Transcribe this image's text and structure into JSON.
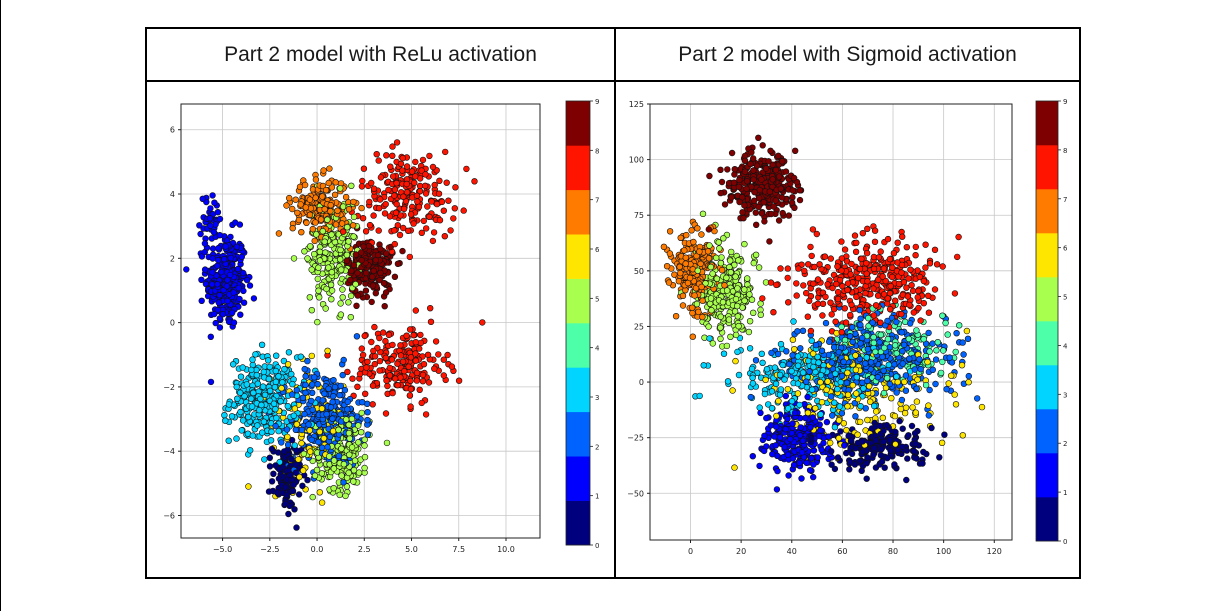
{
  "panels": {
    "left_title": "Part 2 model with ReLu activation",
    "right_title": "Part 2 model with Sigmoid activation"
  },
  "colormap": {
    "name": "jet",
    "colors": [
      "#00007f",
      "#0000ff",
      "#0063ff",
      "#00d4ff",
      "#4effa9",
      "#a9ff4e",
      "#ffe600",
      "#ff7b00",
      "#ff1400",
      "#7f0000"
    ]
  },
  "chart_data": [
    {
      "type": "scatter",
      "title": "",
      "xlabel": "",
      "ylabel": "",
      "xlim": [
        -7.2,
        11.8
      ],
      "ylim": [
        -6.7,
        6.8
      ],
      "xticks": [
        -5.0,
        -2.5,
        0.0,
        2.5,
        5.0,
        7.5,
        10.0
      ],
      "xtick_labels": [
        "−5.0",
        "−2.5",
        "0.0",
        "2.5",
        "5.0",
        "7.5",
        "10.0"
      ],
      "yticks": [
        -6,
        -4,
        -2,
        0,
        2,
        4,
        6
      ],
      "ytick_labels": [
        "−6",
        "−4",
        "−2",
        "0",
        "2",
        "4",
        "6"
      ],
      "grid": true,
      "colorbar": {
        "min": 0,
        "max": 9,
        "ticks": [
          0,
          1,
          2,
          3,
          4,
          5,
          6,
          7,
          8,
          9
        ],
        "tick_labels": [
          "0",
          "1",
          "2",
          "3",
          "4",
          "5",
          "6",
          "7",
          "8",
          "9"
        ]
      },
      "clusters": [
        {
          "label": 1,
          "center": [
            -4.8,
            1.3
          ],
          "spread": [
            0.7,
            1.0
          ],
          "n": 300
        },
        {
          "label": 1,
          "center": [
            -5.6,
            3.2
          ],
          "spread": [
            0.4,
            0.5
          ],
          "n": 40
        },
        {
          "label": 3,
          "center": [
            -2.8,
            -2.4
          ],
          "spread": [
            1.2,
            0.9
          ],
          "n": 280
        },
        {
          "label": 0,
          "center": [
            -1.6,
            -4.8
          ],
          "spread": [
            0.5,
            0.7
          ],
          "n": 110
        },
        {
          "label": 2,
          "center": [
            0.5,
            -3.0
          ],
          "spread": [
            1.3,
            1.0
          ],
          "n": 300
        },
        {
          "label": 5,
          "center": [
            1.3,
            -4.0
          ],
          "spread": [
            1.0,
            0.8
          ],
          "n": 220
        },
        {
          "label": 6,
          "center": [
            -0.5,
            -3.2
          ],
          "spread": [
            1.3,
            1.2
          ],
          "n": 90
        },
        {
          "label": 7,
          "center": [
            0.2,
            3.6
          ],
          "spread": [
            1.0,
            0.6
          ],
          "n": 200
        },
        {
          "label": 5,
          "center": [
            0.8,
            2.2
          ],
          "spread": [
            0.9,
            1.1
          ],
          "n": 220
        },
        {
          "label": 9,
          "center": [
            2.8,
            1.7
          ],
          "spread": [
            0.8,
            0.6
          ],
          "n": 200
        },
        {
          "label": 8,
          "center": [
            4.8,
            4.0
          ],
          "spread": [
            1.7,
            0.9
          ],
          "n": 210
        },
        {
          "label": 8,
          "center": [
            4.4,
            -1.3
          ],
          "spread": [
            1.6,
            0.8
          ],
          "n": 200
        }
      ]
    },
    {
      "type": "scatter",
      "title": "",
      "xlabel": "",
      "ylabel": "",
      "xlim": [
        -16,
        127
      ],
      "ylim": [
        -71,
        125
      ],
      "xticks": [
        0,
        20,
        40,
        60,
        80,
        100,
        120
      ],
      "xtick_labels": [
        "0",
        "20",
        "40",
        "60",
        "80",
        "100",
        "120"
      ],
      "yticks": [
        -50,
        -25,
        0,
        25,
        50,
        75,
        100,
        125
      ],
      "ytick_labels": [
        "−50",
        "−25",
        "0",
        "25",
        "50",
        "75",
        "100",
        "125"
      ],
      "grid": true,
      "colorbar": {
        "min": 0,
        "max": 9,
        "ticks": [
          0,
          1,
          2,
          3,
          4,
          5,
          6,
          7,
          8,
          9
        ],
        "tick_labels": [
          "0",
          "1",
          "2",
          "3",
          "4",
          "5",
          "6",
          "7",
          "8",
          "9"
        ]
      },
      "clusters": [
        {
          "label": 9,
          "center": [
            28,
            88
          ],
          "spread": [
            9,
            10
          ],
          "n": 320
        },
        {
          "label": 7,
          "center": [
            2,
            50
          ],
          "spread": [
            6,
            12
          ],
          "n": 220
        },
        {
          "label": 5,
          "center": [
            14,
            40
          ],
          "spread": [
            8,
            14
          ],
          "n": 260
        },
        {
          "label": 8,
          "center": [
            70,
            45
          ],
          "spread": [
            19,
            12
          ],
          "n": 360
        },
        {
          "label": 1,
          "center": [
            42,
            -25
          ],
          "spread": [
            9,
            10
          ],
          "n": 260
        },
        {
          "label": 2,
          "center": [
            72,
            10
          ],
          "spread": [
            20,
            12
          ],
          "n": 360
        },
        {
          "label": 3,
          "center": [
            50,
            2
          ],
          "spread": [
            22,
            12
          ],
          "n": 280
        },
        {
          "label": 4,
          "center": [
            80,
            15
          ],
          "spread": [
            15,
            10
          ],
          "n": 150
        },
        {
          "label": 0,
          "center": [
            75,
            -30
          ],
          "spread": [
            12,
            7
          ],
          "n": 200
        },
        {
          "label": 6,
          "center": [
            65,
            -5
          ],
          "spread": [
            22,
            16
          ],
          "n": 200
        }
      ]
    }
  ]
}
